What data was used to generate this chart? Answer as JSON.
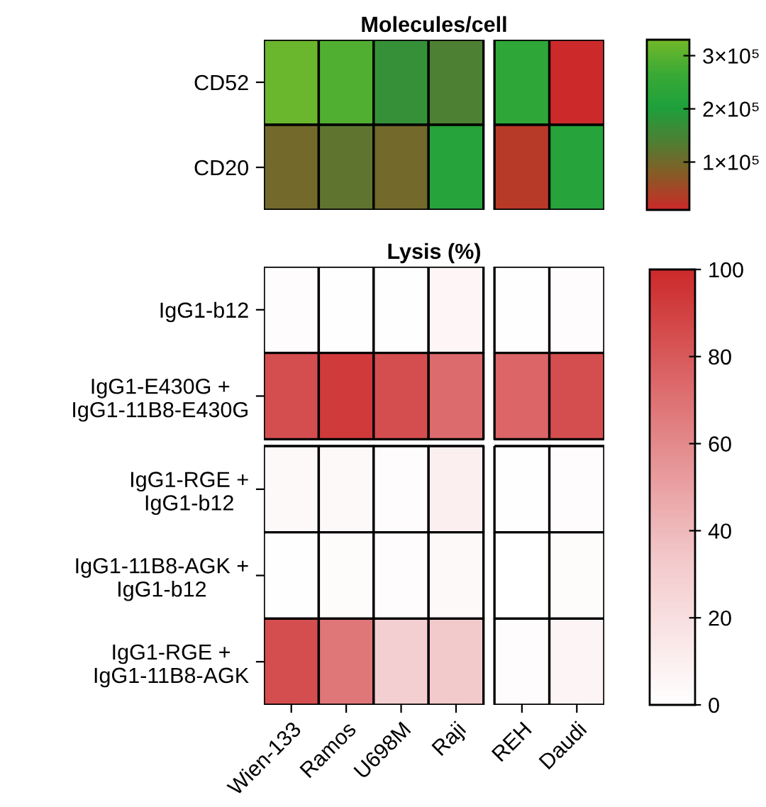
{
  "chart_data": [
    {
      "type": "heatmap",
      "title": "Molecules/cell",
      "categories": [
        null,
        null,
        null,
        null,
        null,
        null
      ],
      "y_categories": [
        "CD52",
        "CD20"
      ],
      "tick_labels": "y",
      "cells": [
        [
          320000,
          290000,
          170000,
          140000,
          240000,
          10000
        ],
        [
          100000,
          120000,
          100000,
          220000,
          30000,
          220000
        ]
      ],
      "colors": [
        "#cc2a2a",
        "#8a5a25",
        "#4f7f33",
        "#1ea03c",
        "#3aaa35",
        "#72b82a"
      ],
      "clim": [
        10000,
        330000
      ],
      "cticks": [
        {
          "value": 100000,
          "label": "1×10⁵"
        },
        {
          "value": 200000,
          "label": "2×10⁵"
        },
        {
          "value": 300000,
          "label": "3×10⁵"
        }
      ]
    },
    {
      "type": "heatmap",
      "title": "Lysis (%)",
      "categories": [
        "Wien-133",
        "Ramos",
        "U698M",
        "Raji",
        "REH",
        "Daudi"
      ],
      "y_categories": [
        "IgG1-b12",
        "IgG1-E430G +\nIgG1-11B8-E430G",
        "IgG1-RGE +\nIgG1-b12",
        "IgG1-11B8-AGK +\nIgG1-b12",
        "IgG1-RGE +\nIgG1-11B8-AGK"
      ],
      "cells": [
        [
          2,
          1,
          1,
          6,
          1,
          2
        ],
        [
          85,
          93,
          85,
          73,
          75,
          85
        ],
        [
          4,
          4,
          2,
          10,
          1,
          2
        ],
        [
          1,
          3,
          2,
          4,
          0,
          3
        ],
        [
          85,
          68,
          30,
          33,
          2,
          7
        ]
      ],
      "colors": [
        "#ffffff",
        "#f3c9cb",
        "#e07a7c",
        "#cc2a2a"
      ],
      "clim": [
        0,
        100
      ],
      "cticks": [
        0,
        20,
        40,
        60,
        80,
        100
      ]
    }
  ]
}
